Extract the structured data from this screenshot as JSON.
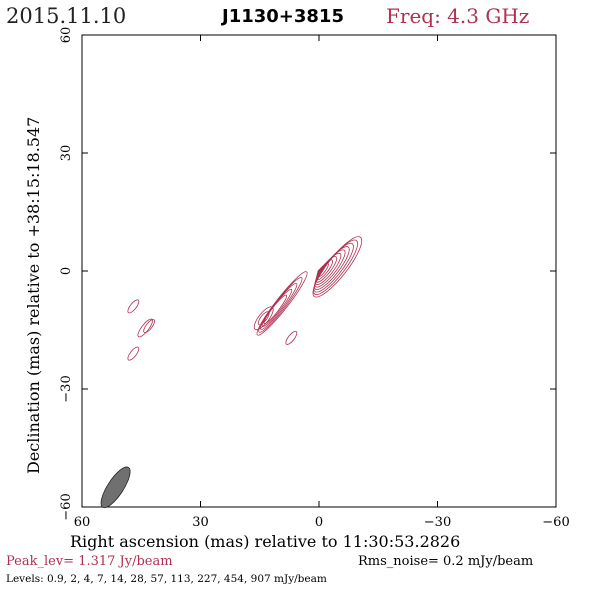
{
  "header": {
    "date": "2015.11.10",
    "source": "J1130+3815",
    "freq": "Freq: 4.3 GHz"
  },
  "footer": {
    "peak": "Peak_lev=  1.317 Jy/beam",
    "rms": "Rms_noise=  0.2 mJy/beam",
    "levels": "Levels: 0.9,    2,    4,    7,   14,   28,   57, 113, 227, 454, 907 mJy/beam"
  },
  "colors": {
    "contour": "#b03050",
    "beam": "#707070",
    "axis": "#000000"
  },
  "chart_data": {
    "type": "contour",
    "title": "J1130+3815",
    "xlabel": "Right ascension (mas) relative to 11:30:53.2826",
    "ylabel": "Declination (mas) relative to +38:15:18.547",
    "xlim": [
      60,
      -60
    ],
    "ylim": [
      -60,
      60
    ],
    "xticks": [
      60,
      30,
      0,
      -30,
      -60
    ],
    "yticks": [
      60,
      30,
      0,
      -30,
      -60
    ],
    "xtick_labels": [
      "60",
      "30",
      "0",
      "−30",
      "−60"
    ],
    "ytick_labels": [
      "60",
      "30",
      "0",
      "−30",
      "−60"
    ],
    "contour_levels_mJy": [
      0.9,
      2,
      4,
      7,
      14,
      28,
      57,
      113,
      227,
      454,
      907
    ],
    "peak_Jy_per_beam": 1.317,
    "rms_noise_mJy_per_beam": 0.2,
    "core": {
      "x": 0,
      "y": 0
    },
    "jet_axis_end": {
      "x": -7,
      "y": 9
    },
    "jet_tail_end": {
      "x": 17,
      "y": -15
    },
    "components": [
      {
        "x": 14,
        "y": -12
      },
      {
        "x": 43,
        "y": -14
      },
      {
        "x": 47,
        "y": -9
      },
      {
        "x": 47,
        "y": -21
      },
      {
        "x": 7,
        "y": -17
      }
    ],
    "beam": {
      "x": 51.5,
      "y": -55,
      "major": 6,
      "minor": 2,
      "pa_deg": -33
    }
  }
}
